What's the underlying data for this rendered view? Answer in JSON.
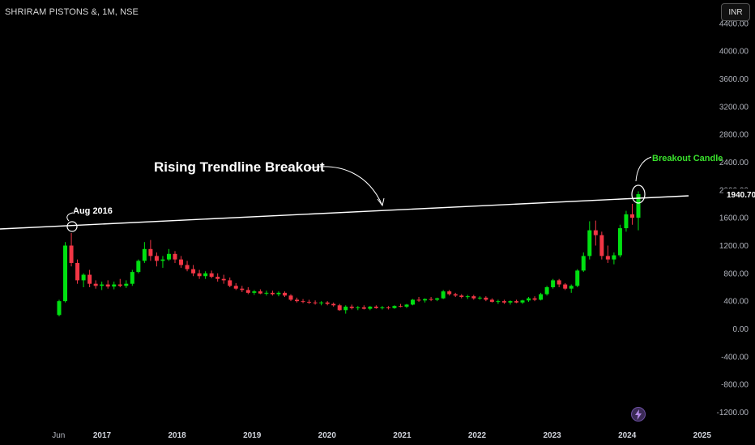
{
  "header": {
    "title": "SHRIRAM PISTONS &, 1M, NSE"
  },
  "currency_button": {
    "label": "INR"
  },
  "chart_data": {
    "type": "candlestick",
    "y_ticks": [
      "-1200.00",
      "-800.00",
      "-400.00",
      "0.00",
      "400.00",
      "800.00",
      "1200.00",
      "1600.00",
      "2000.00",
      "2400.00",
      "2800.00",
      "3200.00",
      "3600.00",
      "4000.00",
      "4400.00"
    ],
    "y_values": [
      -1200,
      -800,
      -400,
      0,
      400,
      800,
      1200,
      1600,
      2000,
      2400,
      2800,
      3200,
      3600,
      4000,
      4400
    ],
    "x_ticks": [
      {
        "label": "Jun",
        "year": 2016.42
      },
      {
        "label": "2017",
        "year": 2017
      },
      {
        "label": "2018",
        "year": 2018
      },
      {
        "label": "2019",
        "year": 2019
      },
      {
        "label": "2020",
        "year": 2020
      },
      {
        "label": "2021",
        "year": 2021
      },
      {
        "label": "2022",
        "year": 2022
      },
      {
        "label": "2023",
        "year": 2023
      },
      {
        "label": "2024",
        "year": 2024
      },
      {
        "label": "2025",
        "year": 2025
      }
    ],
    "last_price": "1940.70",
    "candles_ohlc": [
      [
        200,
        420,
        180,
        400
      ],
      [
        400,
        1250,
        380,
        1200
      ],
      [
        1200,
        1380,
        900,
        950
      ],
      [
        950,
        1000,
        650,
        700
      ],
      [
        700,
        800,
        600,
        780
      ],
      [
        780,
        850,
        600,
        650
      ],
      [
        650,
        700,
        580,
        620
      ],
      [
        620,
        680,
        560,
        640
      ],
      [
        640,
        700,
        580,
        610
      ],
      [
        610,
        680,
        570,
        640
      ],
      [
        640,
        720,
        600,
        620
      ],
      [
        620,
        700,
        590,
        650
      ],
      [
        650,
        850,
        620,
        820
      ],
      [
        820,
        1000,
        800,
        980
      ],
      [
        980,
        1250,
        950,
        1150
      ],
      [
        1150,
        1280,
        980,
        1050
      ],
      [
        1050,
        1100,
        900,
        980
      ],
      [
        980,
        1050,
        880,
        1000
      ],
      [
        1000,
        1150,
        980,
        1080
      ],
      [
        1080,
        1120,
        950,
        1000
      ],
      [
        1000,
        1050,
        880,
        920
      ],
      [
        920,
        980,
        830,
        860
      ],
      [
        860,
        920,
        760,
        800
      ],
      [
        800,
        850,
        720,
        760
      ],
      [
        760,
        830,
        720,
        800
      ],
      [
        800,
        840,
        730,
        750
      ],
      [
        750,
        800,
        680,
        720
      ],
      [
        720,
        780,
        650,
        700
      ],
      [
        700,
        740,
        600,
        620
      ],
      [
        620,
        660,
        560,
        580
      ],
      [
        580,
        620,
        530,
        560
      ],
      [
        560,
        600,
        500,
        520
      ],
      [
        520,
        560,
        490,
        540
      ],
      [
        540,
        570,
        500,
        510
      ],
      [
        510,
        550,
        480,
        520
      ],
      [
        520,
        550,
        480,
        500
      ],
      [
        500,
        540,
        470,
        520
      ],
      [
        520,
        540,
        460,
        480
      ],
      [
        480,
        500,
        400,
        420
      ],
      [
        420,
        450,
        380,
        400
      ],
      [
        400,
        430,
        370,
        390
      ],
      [
        390,
        420,
        360,
        380
      ],
      [
        380,
        410,
        350,
        370
      ],
      [
        370,
        400,
        340,
        380
      ],
      [
        380,
        400,
        340,
        360
      ],
      [
        360,
        380,
        320,
        340
      ],
      [
        340,
        360,
        260,
        270
      ],
      [
        270,
        340,
        220,
        320
      ],
      [
        320,
        350,
        280,
        300
      ],
      [
        300,
        330,
        270,
        310
      ],
      [
        310,
        340,
        280,
        290
      ],
      [
        290,
        330,
        270,
        320
      ],
      [
        320,
        340,
        290,
        300
      ],
      [
        300,
        330,
        280,
        310
      ],
      [
        310,
        330,
        280,
        300
      ],
      [
        300,
        340,
        290,
        330
      ],
      [
        330,
        360,
        310,
        320
      ],
      [
        320,
        360,
        300,
        350
      ],
      [
        350,
        430,
        340,
        420
      ],
      [
        420,
        460,
        390,
        410
      ],
      [
        410,
        440,
        380,
        430
      ],
      [
        430,
        460,
        400,
        420
      ],
      [
        420,
        450,
        400,
        440
      ],
      [
        440,
        560,
        430,
        540
      ],
      [
        540,
        560,
        480,
        500
      ],
      [
        500,
        520,
        460,
        480
      ],
      [
        480,
        500,
        440,
        460
      ],
      [
        460,
        490,
        430,
        470
      ],
      [
        470,
        490,
        420,
        440
      ],
      [
        440,
        470,
        420,
        450
      ],
      [
        450,
        470,
        400,
        420
      ],
      [
        420,
        440,
        380,
        390
      ],
      [
        390,
        420,
        360,
        400
      ],
      [
        400,
        420,
        360,
        380
      ],
      [
        380,
        410,
        350,
        400
      ],
      [
        400,
        420,
        370,
        380
      ],
      [
        380,
        420,
        360,
        410
      ],
      [
        410,
        460,
        390,
        440
      ],
      [
        440,
        470,
        400,
        420
      ],
      [
        420,
        520,
        410,
        500
      ],
      [
        500,
        620,
        480,
        600
      ],
      [
        600,
        720,
        580,
        700
      ],
      [
        700,
        720,
        600,
        640
      ],
      [
        640,
        660,
        560,
        580
      ],
      [
        580,
        640,
        520,
        620
      ],
      [
        620,
        860,
        600,
        840
      ],
      [
        840,
        1100,
        820,
        1050
      ],
      [
        1050,
        1550,
        1000,
        1420
      ],
      [
        1420,
        1560,
        1200,
        1350
      ],
      [
        1350,
        1400,
        1000,
        1050
      ],
      [
        1050,
        1200,
        950,
        1000
      ],
      [
        1000,
        1100,
        930,
        1060
      ],
      [
        1060,
        1500,
        1030,
        1450
      ],
      [
        1450,
        1700,
        1400,
        1650
      ],
      [
        1650,
        1800,
        1500,
        1600
      ],
      [
        1600,
        1980,
        1420,
        1940
      ]
    ]
  },
  "annotations": {
    "trendline_label": "Rising Trendline Breakout",
    "aug_label": "Aug 2016",
    "breakout_label": "Breakout Candle"
  },
  "colors": {
    "up": "#00e011",
    "down": "#f23645",
    "trendline": "#ffffff",
    "breakout_text": "#39e02c"
  }
}
